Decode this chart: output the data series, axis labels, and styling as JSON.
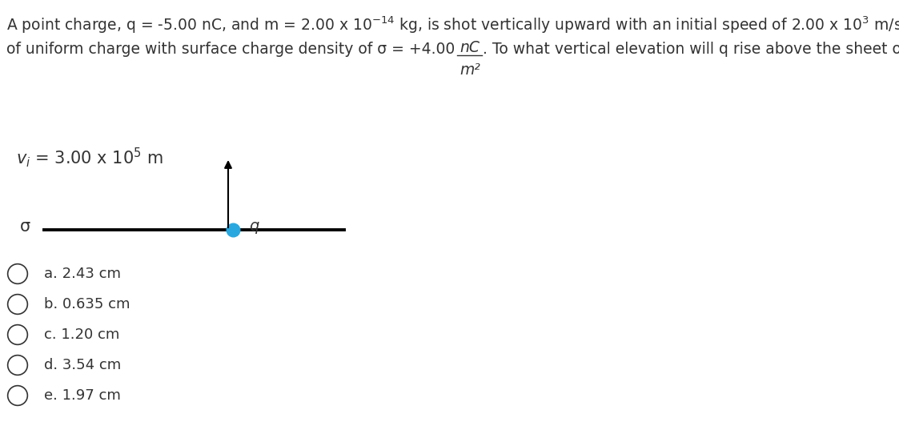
{
  "background_color": "#ffffff",
  "text_color": "#333333",
  "line_color": "#000000",
  "dot_color": "#29a8e0",
  "body_fontsize": 13.5,
  "choices_fontsize": 13,
  "diagram_fontsize": 15,
  "choices": [
    "a. 2.43 cm",
    "b. 0.635 cm",
    "c. 1.20 cm",
    "d. 3.54 cm",
    "e. 1.97 cm"
  ]
}
